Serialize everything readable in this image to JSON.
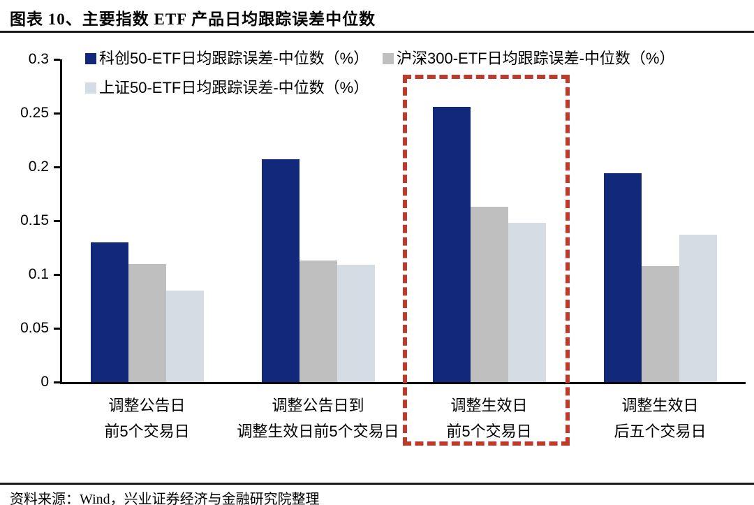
{
  "header": {
    "title": "图表 10、主要指数 ETF 产品日均跟踪误差中位数"
  },
  "footer": {
    "source": "资料来源：Wind，兴业证券经济与金融研究院整理"
  },
  "chart_data": {
    "type": "bar",
    "title": "主要指数 ETF 产品日均跟踪误差中位数",
    "xlabel": "",
    "ylabel": "",
    "ylim": [
      0,
      0.3
    ],
    "ytick_step": 0.05,
    "yticks": [
      "0",
      "0.05",
      "0.1",
      "0.15",
      "0.2",
      "0.25",
      "0.3"
    ],
    "grid": false,
    "legend_position": "top-left",
    "background": "#ffffff",
    "axis_color": "#000000",
    "categories": [
      [
        "调整公告日",
        "前5个交易日"
      ],
      [
        "调整公告日到",
        "调整生效日前5个交易日"
      ],
      [
        "调整生效日",
        "前5个交易日"
      ],
      [
        "调整生效日",
        "后五个交易日"
      ]
    ],
    "series": [
      {
        "name": "科创50-ETF日均跟踪误差-中位数（%）",
        "color": "#12297B",
        "values": [
          0.13,
          0.207,
          0.256,
          0.194
        ]
      },
      {
        "name": "沪深300-ETF日均跟踪误差-中位数（%）",
        "color": "#BFBFBF",
        "values": [
          0.11,
          0.113,
          0.163,
          0.108
        ]
      },
      {
        "name": "上证50-ETF日均跟踪误差-中位数（%）",
        "color": "#D6DCE4",
        "values": [
          0.085,
          0.109,
          0.148,
          0.137
        ]
      }
    ],
    "highlight": {
      "category_index": 2,
      "style": "dashed-box",
      "color": "#BF3A2B"
    }
  }
}
